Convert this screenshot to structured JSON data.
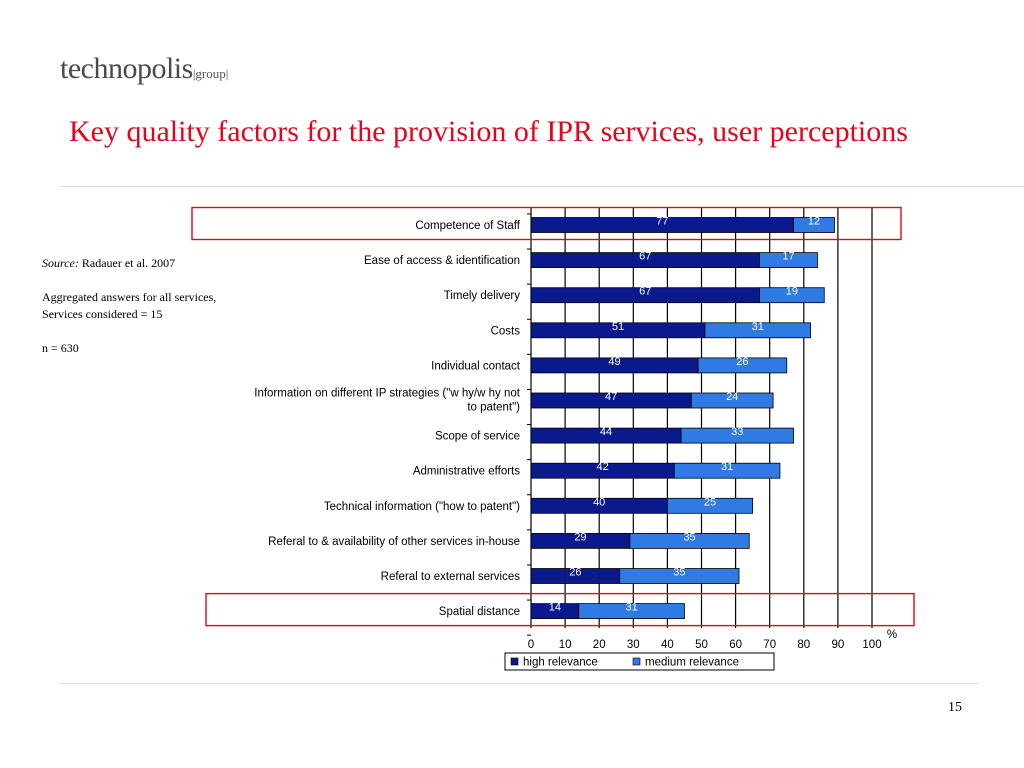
{
  "header": {
    "logo_main": "technopolis",
    "logo_group": "|group|",
    "title": "Key quality factors for the provision of IPR services, user perceptions"
  },
  "notes": {
    "source_label": "Source:",
    "source_text": "Radauer et al. 2007",
    "line1": "Aggregated answers for all services,",
    "line2": "Services considered = 15",
    "line3": "n = 630"
  },
  "footer": {
    "page_number": "15"
  },
  "colors": {
    "high": "#0a1a8c",
    "medium": "#2f7be3",
    "highlight_box": "#e3061b"
  },
  "chart_data": {
    "type": "bar",
    "orientation": "horizontal",
    "stacked": true,
    "title": "",
    "xlabel": "%",
    "ylabel": "",
    "xlim": [
      0,
      100
    ],
    "xticks": [
      0,
      10,
      20,
      30,
      40,
      50,
      60,
      70,
      80,
      90,
      100
    ],
    "grid": true,
    "legend_position": "bottom",
    "categories": [
      "Competence of Staff",
      "Ease of access & identification",
      "Timely delivery",
      "Costs",
      "Individual contact",
      "Information on different IP strategies (\"w hy/w hy not to patent\")",
      "Scope of service",
      "Administrative efforts",
      "Technical information (\"how  to patent\")",
      "Referal to & availability of other services in-house",
      "Referal to external services",
      "Spatial distance"
    ],
    "category_lines": [
      [
        "Competence of Staff"
      ],
      [
        "Ease of access & identification"
      ],
      [
        "Timely delivery"
      ],
      [
        "Costs"
      ],
      [
        "Individual contact"
      ],
      [
        "Information on different IP strategies (\"w hy/w hy not",
        "to patent\")"
      ],
      [
        "Scope of service"
      ],
      [
        "Administrative efforts"
      ],
      [
        "Technical information (\"how  to patent\")"
      ],
      [
        "Referal to & availability of other services in-house"
      ],
      [
        "Referal to external services"
      ],
      [
        "Spatial distance"
      ]
    ],
    "series": [
      {
        "name": "high relevance",
        "values": [
          77,
          67,
          67,
          51,
          49,
          47,
          44,
          42,
          40,
          29,
          26,
          14
        ]
      },
      {
        "name": "medium relevance",
        "values": [
          12,
          17,
          19,
          31,
          26,
          24,
          33,
          31,
          25,
          35,
          35,
          31
        ]
      }
    ],
    "highlighted_categories": [
      "Competence of Staff",
      "Spatial distance"
    ]
  }
}
